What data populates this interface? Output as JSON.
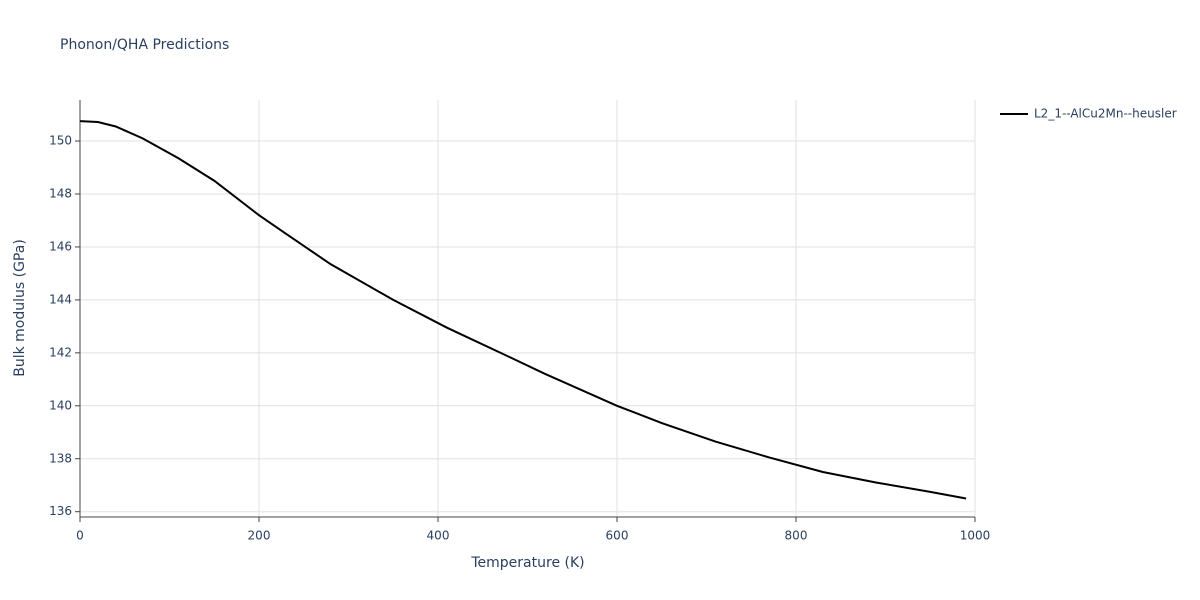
{
  "chart_data": {
    "type": "line",
    "title": "Phonon/QHA Predictions",
    "x_label": "Temperature (K)",
    "y_label": "Bulk modulus (GPa)",
    "xlim": [
      0,
      1000
    ],
    "xticks": [
      0,
      200,
      400,
      600,
      800,
      1000
    ],
    "ylim": [
      135.8,
      151.55
    ],
    "yticks": [
      136,
      138,
      140,
      142,
      144,
      146,
      148,
      150
    ],
    "grid": true,
    "legend": "top-right",
    "x": [
      0,
      20,
      40,
      50,
      70,
      110,
      150,
      200,
      230,
      280,
      350,
      410,
      470,
      520,
      600,
      650,
      710,
      770,
      830,
      890,
      950,
      990
    ],
    "series": [
      {
        "name": "L2_1--AlCu2Mn--heusler",
        "color": "#000000",
        "values": [
          150.75,
          150.72,
          150.55,
          150.4,
          150.1,
          149.35,
          148.5,
          147.2,
          146.5,
          145.35,
          144.0,
          142.95,
          142.0,
          141.2,
          140.0,
          139.35,
          138.65,
          138.05,
          137.5,
          137.1,
          136.75,
          136.5
        ]
      }
    ]
  }
}
